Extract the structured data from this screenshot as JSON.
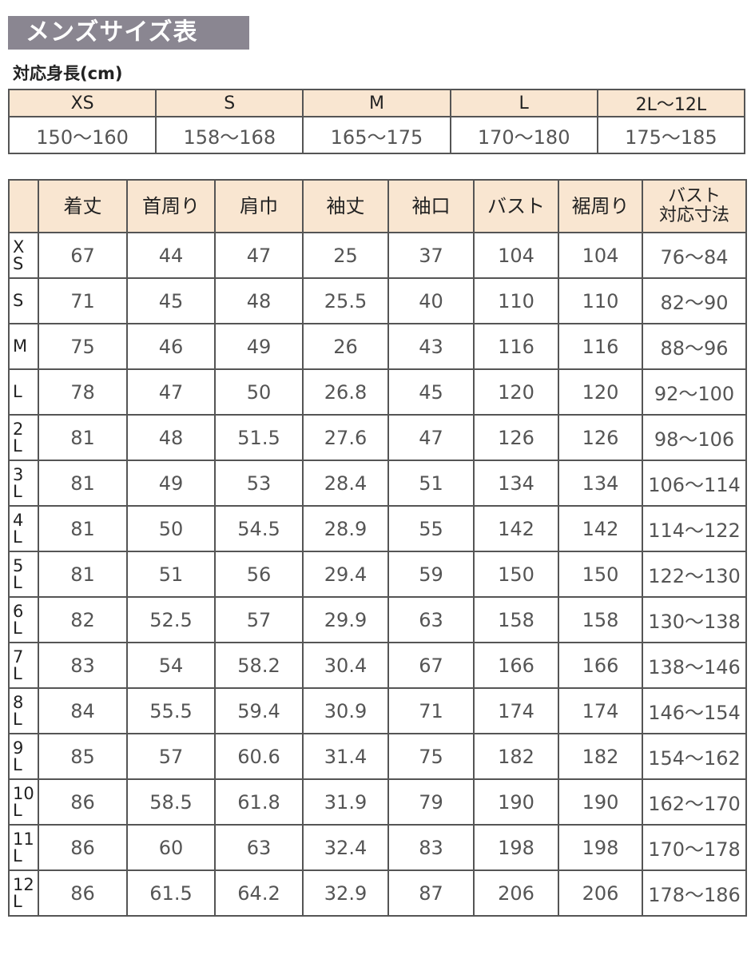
{
  "title": "メンズサイズ表",
  "height_table": {
    "caption": "対応身長(cm)",
    "sizes": [
      "XS",
      "S",
      "M",
      "L",
      "2L〜12L"
    ],
    "heights": [
      "150〜160",
      "158〜168",
      "165〜175",
      "170〜180",
      "175〜185"
    ]
  },
  "size_table": {
    "headers": [
      "",
      "着丈",
      "首周り",
      "肩巾",
      "袖丈",
      "袖口",
      "バスト",
      "裾周り",
      "バスト\n対応寸法"
    ],
    "rows": [
      {
        "size": "X\nS",
        "values": [
          "67",
          "44",
          "47",
          "25",
          "37",
          "104",
          "104",
          "76〜84"
        ]
      },
      {
        "size": "S",
        "values": [
          "71",
          "45",
          "48",
          "25.5",
          "40",
          "110",
          "110",
          "82〜90"
        ]
      },
      {
        "size": "M",
        "values": [
          "75",
          "46",
          "49",
          "26",
          "43",
          "116",
          "116",
          "88〜96"
        ]
      },
      {
        "size": "L",
        "values": [
          "78",
          "47",
          "50",
          "26.8",
          "45",
          "120",
          "120",
          "92〜100"
        ]
      },
      {
        "size": "2\nL",
        "values": [
          "81",
          "48",
          "51.5",
          "27.6",
          "47",
          "126",
          "126",
          "98〜106"
        ]
      },
      {
        "size": "3\nL",
        "values": [
          "81",
          "49",
          "53",
          "28.4",
          "51",
          "134",
          "134",
          "106〜114"
        ]
      },
      {
        "size": "4\nL",
        "values": [
          "81",
          "50",
          "54.5",
          "28.9",
          "55",
          "142",
          "142",
          "114〜122"
        ]
      },
      {
        "size": "5\nL",
        "values": [
          "81",
          "51",
          "56",
          "29.4",
          "59",
          "150",
          "150",
          "122〜130"
        ]
      },
      {
        "size": "6\nL",
        "values": [
          "82",
          "52.5",
          "57",
          "29.9",
          "63",
          "158",
          "158",
          "130〜138"
        ]
      },
      {
        "size": "7\nL",
        "values": [
          "83",
          "54",
          "58.2",
          "30.4",
          "67",
          "166",
          "166",
          "138〜146"
        ]
      },
      {
        "size": "8\nL",
        "values": [
          "84",
          "55.5",
          "59.4",
          "30.9",
          "71",
          "174",
          "174",
          "146〜154"
        ]
      },
      {
        "size": "9\nL",
        "values": [
          "85",
          "57",
          "60.6",
          "31.4",
          "75",
          "182",
          "182",
          "154〜162"
        ]
      },
      {
        "size": "10\nL",
        "values": [
          "86",
          "58.5",
          "61.8",
          "31.9",
          "79",
          "190",
          "190",
          "162〜170"
        ]
      },
      {
        "size": "11\nL",
        "values": [
          "86",
          "60",
          "63",
          "32.4",
          "83",
          "198",
          "198",
          "170〜178"
        ]
      },
      {
        "size": "12\nL",
        "values": [
          "86",
          "61.5",
          "64.2",
          "32.9",
          "87",
          "206",
          "206",
          "178〜186"
        ]
      }
    ]
  },
  "colors": {
    "title_bg": "#8a8691",
    "header_bg": "#f9e6d1",
    "border": "#555555"
  }
}
